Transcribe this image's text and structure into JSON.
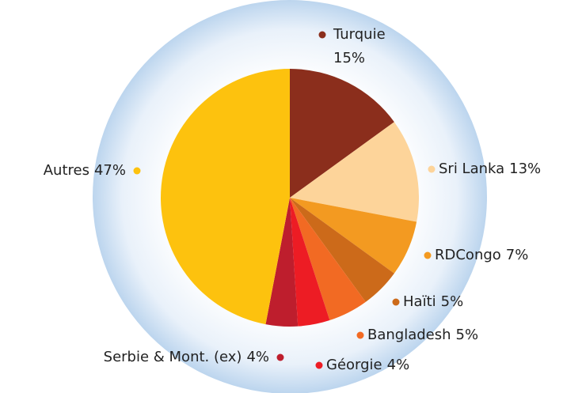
{
  "chart_data": {
    "type": "pie",
    "categories": [
      "Turquie",
      "Sri Lanka",
      "RDCongo",
      "Haïti",
      "Bangladesh",
      "Géorgie",
      "Serbie & Mont. (ex)",
      "Autres"
    ],
    "values": [
      15,
      13,
      7,
      5,
      5,
      4,
      4,
      47
    ],
    "value_labels": [
      "15%",
      "13%",
      "7%",
      "5%",
      "5%",
      "4%",
      "4%",
      "47%"
    ],
    "colors": [
      "#8b2e1c",
      "#fdd49a",
      "#f39a21",
      "#cc6a1a",
      "#f26a23",
      "#ed1c24",
      "#be1e2d",
      "#fdc20e"
    ]
  }
}
